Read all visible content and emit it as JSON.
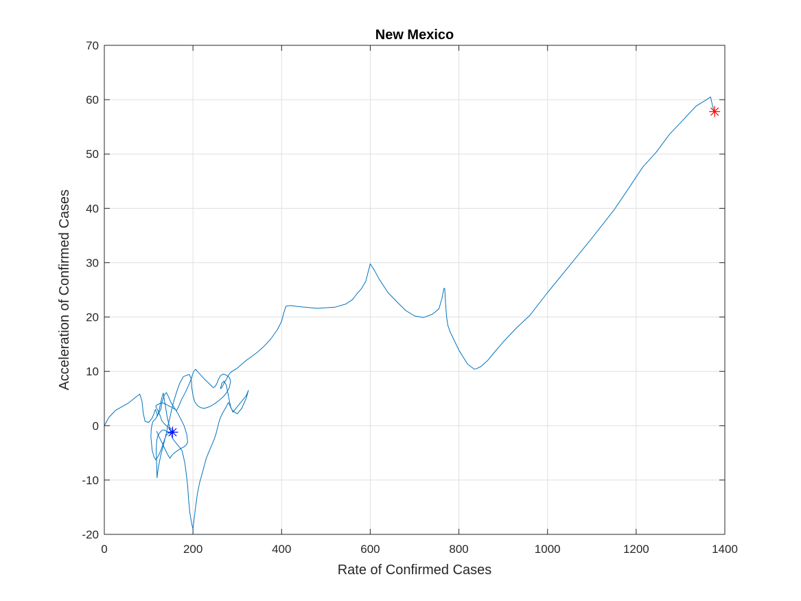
{
  "chart_data": {
    "type": "line",
    "title": "New Mexico",
    "xlabel": "Rate of Confirmed Cases",
    "ylabel": "Acceleration of Confirmed Cases",
    "xlim": [
      0,
      1400
    ],
    "ylim": [
      -20,
      70
    ],
    "xticks": [
      0,
      200,
      400,
      600,
      800,
      1000,
      1200,
      1400
    ],
    "yticks": [
      -20,
      -10,
      0,
      10,
      20,
      30,
      40,
      50,
      60,
      70
    ],
    "grid": true,
    "line_color": "#0072bd",
    "series": [
      {
        "x": [
          0,
          10,
          25,
          40,
          55,
          70,
          80,
          85,
          88,
          92,
          100,
          108,
          112,
          115,
          118,
          120,
          124,
          127,
          130,
          133,
          136,
          139,
          142,
          145,
          148,
          150,
          153,
          158,
          162,
          166,
          170,
          175,
          178,
          182,
          185,
          188,
          190,
          193,
          197,
          200,
          205,
          210,
          215,
          220,
          230,
          240,
          248,
          252,
          255,
          258,
          262,
          268,
          275,
          280,
          283,
          286,
          290,
          300,
          310,
          320,
          325,
          320,
          310,
          300,
          290,
          285,
          280,
          275,
          270,
          265,
          262,
          265,
          270,
          275,
          280,
          285,
          290,
          300,
          310,
          320,
          330,
          345,
          360,
          375,
          390,
          400,
          405,
          410,
          420,
          440,
          480,
          520,
          545,
          560,
          570,
          580,
          590,
          600,
          610,
          620,
          640,
          660,
          680,
          700,
          720,
          740,
          755,
          762,
          766,
          768,
          770,
          772,
          775,
          780,
          790,
          800,
          810,
          820,
          830,
          835,
          840,
          850,
          865,
          880,
          900,
          930,
          960,
          1000,
          1050,
          1100,
          1150,
          1180,
          1215,
          1245,
          1275,
          1305,
          1335,
          1355,
          1368,
          1372,
          1376
        ],
        "y": [
          0,
          1.5,
          2.8,
          3.5,
          4.2,
          5.2,
          5.8,
          4.5,
          2.2,
          0.8,
          0.6,
          1.4,
          2.2,
          3.0,
          2.4,
          1.8,
          3.0,
          4.2,
          5.2,
          6.0,
          4.5,
          3.0,
          1.5,
          0.5,
          -0.5,
          -1.5,
          -2.2,
          -2.8,
          -3.2,
          -3.6,
          -4.0,
          -4.5,
          -5.5,
          -7.0,
          -9.0,
          -11.0,
          -13.5,
          -16.0,
          -18.0,
          -19.0,
          -15.5,
          -12.5,
          -10.5,
          -9.0,
          -6.0,
          -4.0,
          -2.5,
          -1.5,
          -0.5,
          0.5,
          1.5,
          2.5,
          3.5,
          4.3,
          3.8,
          3.2,
          2.7,
          2.2,
          3.2,
          5.0,
          6.5,
          5.5,
          4.5,
          3.5,
          2.5,
          3.5,
          5.5,
          7.5,
          8.2,
          7.8,
          6.8,
          7.0,
          7.8,
          8.5,
          9.3,
          9.8,
          10.1,
          10.6,
          11.3,
          12.0,
          12.6,
          13.5,
          14.6,
          15.9,
          17.6,
          19.2,
          20.8,
          22.0,
          22.1,
          21.9,
          21.6,
          21.8,
          22.4,
          23.2,
          24.3,
          25.2,
          26.6,
          29.8,
          28.5,
          27.0,
          24.5,
          22.8,
          21.2,
          20.2,
          19.9,
          20.5,
          21.5,
          23.5,
          25.2,
          25.3,
          22.5,
          20.2,
          18.5,
          17.3,
          15.6,
          13.9,
          12.6,
          11.3,
          10.7,
          10.4,
          10.5,
          10.9,
          12.0,
          13.5,
          15.4,
          18.0,
          20.3,
          24.5,
          29.5,
          34.5,
          39.7,
          43.3,
          47.6,
          50.3,
          53.6,
          56.2,
          58.8,
          59.8,
          60.5,
          59.0,
          57.8
        ]
      },
      {
        "x": [
          118,
          122,
          128,
          135,
          142,
          148,
          152,
          158,
          165,
          172,
          180,
          185,
          188,
          186,
          180,
          172,
          165,
          158,
          150,
          145,
          140,
          135,
          130,
          128,
          125,
          120,
          118,
          115,
          112,
          110,
          108,
          106,
          105,
          108,
          112,
          116,
          120,
          124,
          128,
          132,
          136,
          140,
          146,
          152,
          156,
          150,
          143,
          136,
          130,
          126,
          122,
          118,
          116,
          120,
          126,
          132,
          138,
          144,
          152,
          158,
          163,
          168,
          174,
          182,
          190,
          196,
          201,
          206,
          212,
          220,
          228,
          236,
          242,
          246,
          250,
          254,
          258,
          262,
          268,
          275,
          282,
          285,
          282,
          276,
          268,
          258,
          250,
          242,
          234,
          226,
          218,
          210,
          204,
          200,
          197,
          196,
          192,
          186,
          178,
          170,
          163,
          157,
          152,
          148,
          144,
          140,
          136,
          132,
          128,
          125,
          122,
          120,
          119,
          118,
          117,
          118,
          120,
          124,
          128,
          132,
          136,
          140,
          146,
          152,
          156
        ],
        "y": [
          -1.0,
          -1.8,
          -2.8,
          -4.0,
          -5.2,
          -6.0,
          -5.5,
          -5.0,
          -4.6,
          -4.2,
          -3.9,
          -3.5,
          -3.0,
          -1.6,
          0.0,
          1.3,
          2.4,
          3.3,
          4.3,
          5.3,
          6.1,
          5.6,
          4.3,
          3.2,
          2.6,
          2.0,
          1.6,
          1.2,
          1.0,
          0.8,
          0.3,
          -0.6,
          -2.0,
          -4.5,
          -5.7,
          -6.3,
          -5.8,
          -5.2,
          -4.4,
          -3.5,
          -2.5,
          -1.7,
          -1.3,
          -1.0,
          -0.9,
          -0.5,
          -0.2,
          0.3,
          0.9,
          1.8,
          2.6,
          3.2,
          3.6,
          3.9,
          4.1,
          4.2,
          4.0,
          3.7,
          3.4,
          3.1,
          2.8,
          3.6,
          4.8,
          6.0,
          7.4,
          8.6,
          9.9,
          10.4,
          9.8,
          9.1,
          8.4,
          7.8,
          7.3,
          7.0,
          7.2,
          7.8,
          8.6,
          9.2,
          9.5,
          9.3,
          8.9,
          8.2,
          7.0,
          6.1,
          5.3,
          4.6,
          4.1,
          3.7,
          3.4,
          3.2,
          3.3,
          3.7,
          4.4,
          5.6,
          7.2,
          8.6,
          9.4,
          9.3,
          9.0,
          7.8,
          6.2,
          4.6,
          3.0,
          1.5,
          0.2,
          -1.3,
          -2.7,
          -4.0,
          -5.2,
          -6.4,
          -7.6,
          -8.8,
          -9.6,
          -7.0,
          -4.5,
          -3.0,
          -2.0,
          -1.4,
          -1.0,
          -0.8,
          -0.8,
          -1.0,
          -1.3,
          -1.5,
          -1.2
        ]
      }
    ],
    "markers": [
      {
        "x": 154,
        "y": -1.2,
        "symbol": "*",
        "color": "#0000ff"
      },
      {
        "x": 1377,
        "y": 57.8,
        "symbol": "*",
        "color": "#ff0000"
      }
    ]
  }
}
